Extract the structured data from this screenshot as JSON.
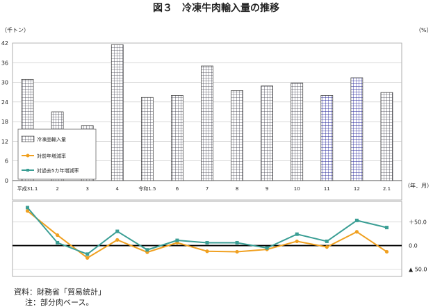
{
  "title": "図３　冷凍牛肉輸入量の推移",
  "source": [
    "資料：財務省「貿易統計」",
    "注：部分肉ベース。"
  ],
  "chart_data": [
    {
      "type": "bar",
      "categories": [
        "平成31.1",
        "2",
        "3",
        "4",
        "令和1.5",
        "6",
        "7",
        "8",
        "9",
        "10",
        "11",
        "12",
        "2.1"
      ],
      "values": [
        30.9,
        21.0,
        16.8,
        41.5,
        25.4,
        26.0,
        35.0,
        27.5,
        28.9,
        29.8,
        26.0,
        31.4,
        26.9
      ],
      "yunit": "（千トン）",
      "xunit": "（年．月）",
      "ylim": [
        0,
        42
      ],
      "yticks": [
        0,
        6,
        12,
        18,
        24,
        30,
        36,
        42
      ],
      "grid": true
    },
    {
      "type": "line",
      "categories": [
        "平成31.1",
        "2",
        "3",
        "4",
        "令和1.5",
        "6",
        "7",
        "8",
        "9",
        "10",
        "11",
        "12",
        "2.1"
      ],
      "series": [
        {
          "name": "対前年増減率",
          "color": "#f0a020",
          "values": [
            73,
            22,
            -26,
            12,
            -14,
            6,
            -12,
            -13,
            -8,
            9,
            -3,
            29,
            -13
          ]
        },
        {
          "name": "対過去5カ年増減率",
          "color": "#3a9e94",
          "values": [
            80,
            6,
            -18,
            30,
            -9,
            11,
            6,
            6,
            -5,
            24,
            9,
            53,
            38
          ]
        }
      ],
      "yunit": "（%）",
      "ylim": [
        -65,
        93
      ],
      "yticks": [
        50,
        0,
        -50
      ],
      "ytick_labels": [
        "＋50.0",
        "0.0",
        "▲ 50.0"
      ]
    }
  ],
  "legend": {
    "items": [
      "冷凍品輸入量",
      "対前年増減率",
      "対過去5カ年増減率"
    ],
    "placement": "left, inside bar chart"
  }
}
